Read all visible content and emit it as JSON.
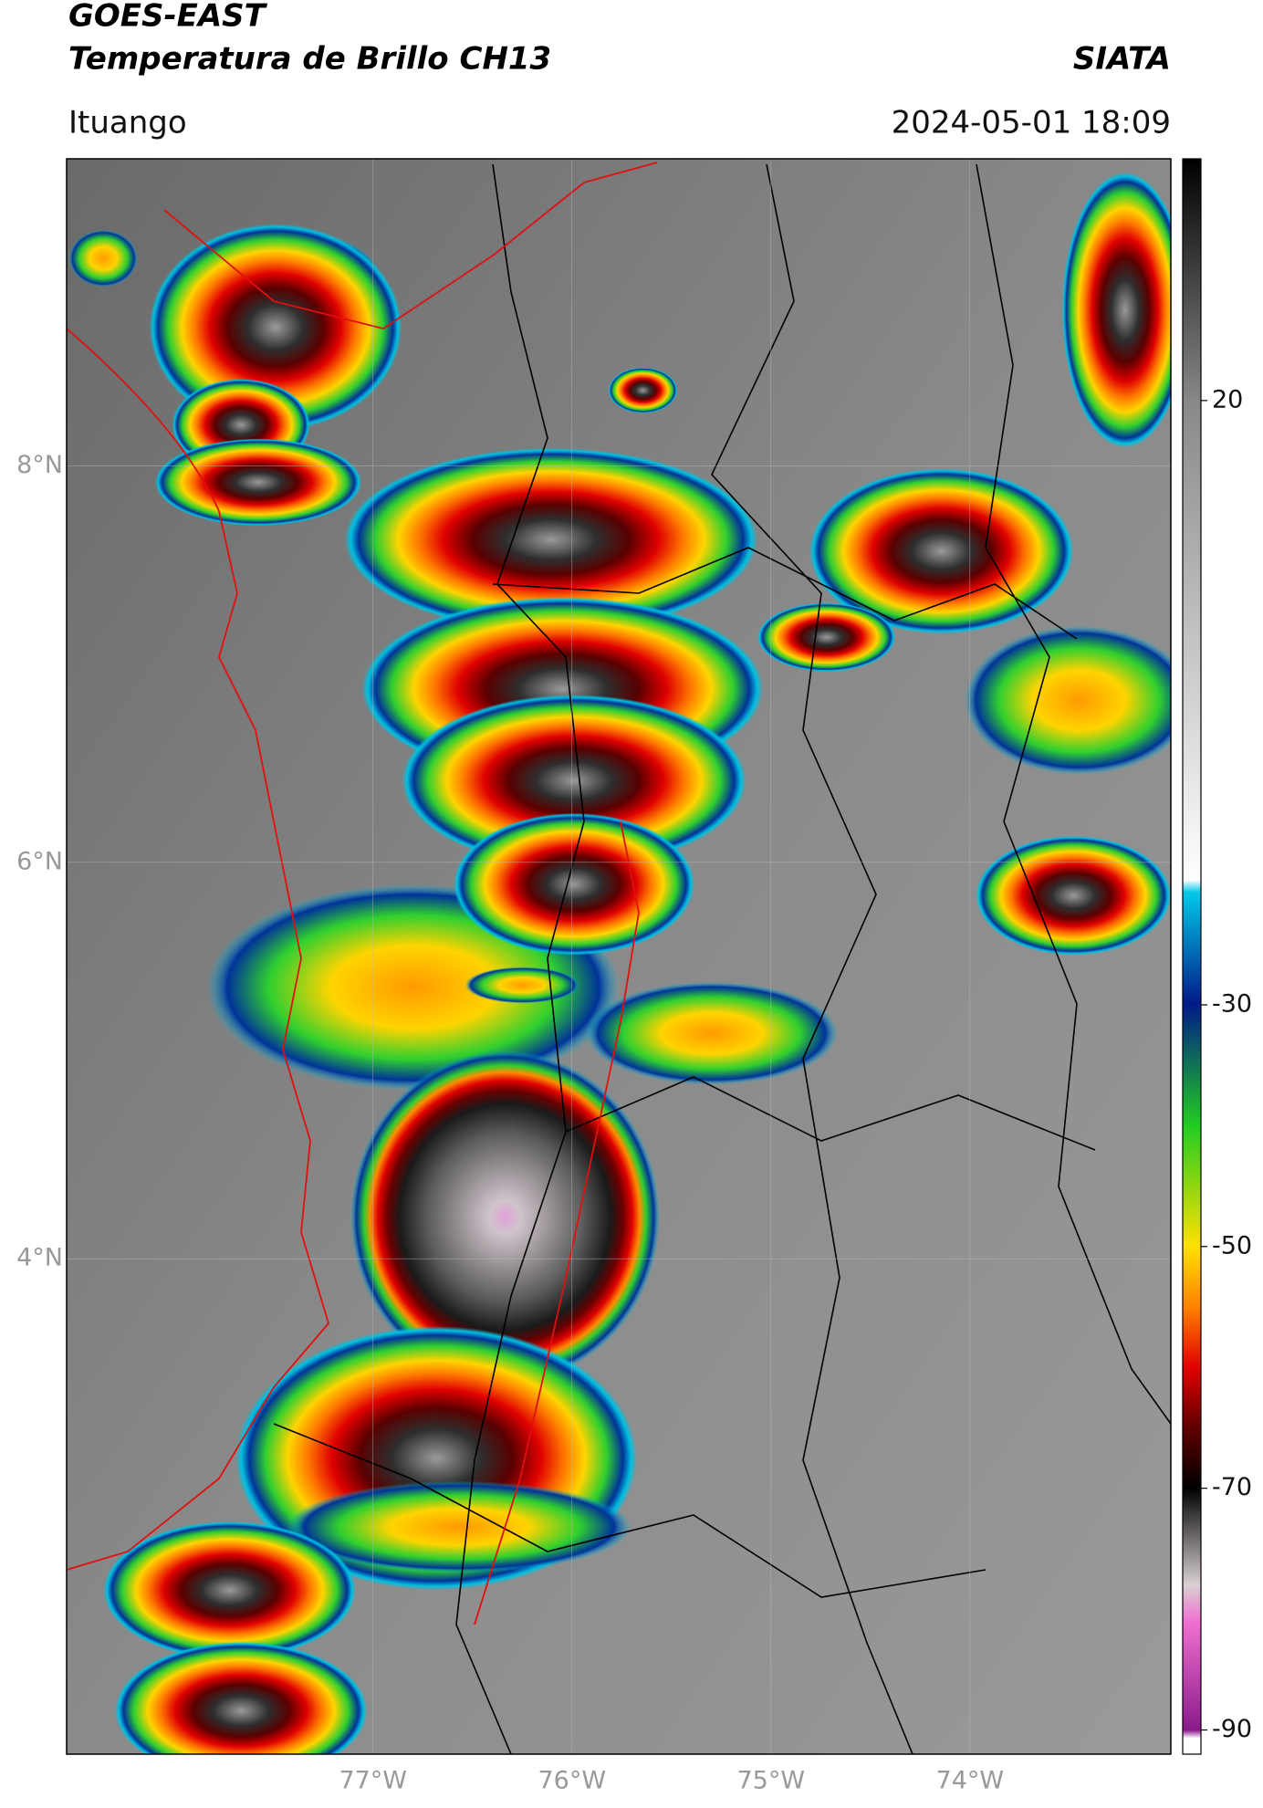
{
  "header": {
    "title": "GOES-EAST",
    "subtitle": "Temperatura de Brillo CH13",
    "source": "SIATA",
    "location": "Ituango",
    "datetime": "2024-05-01 18:09"
  },
  "map": {
    "xlim": [
      -78.54,
      -72.99
    ],
    "ylim": [
      1.5,
      9.55
    ],
    "xticks": [
      {
        "value": -77,
        "label": "77°W"
      },
      {
        "value": -76,
        "label": "76°W"
      },
      {
        "value": -75,
        "label": "75°W"
      },
      {
        "value": -74,
        "label": "74°W"
      }
    ],
    "yticks": [
      {
        "value": 8,
        "label": "8°N"
      },
      {
        "value": 6,
        "label": "6°N"
      },
      {
        "value": 4,
        "label": "4°N"
      }
    ],
    "grid": true
  },
  "colorbar": {
    "lim": [
      -92,
      40
    ],
    "ticks": [
      20,
      -30,
      -50,
      -70,
      -90
    ]
  }
}
